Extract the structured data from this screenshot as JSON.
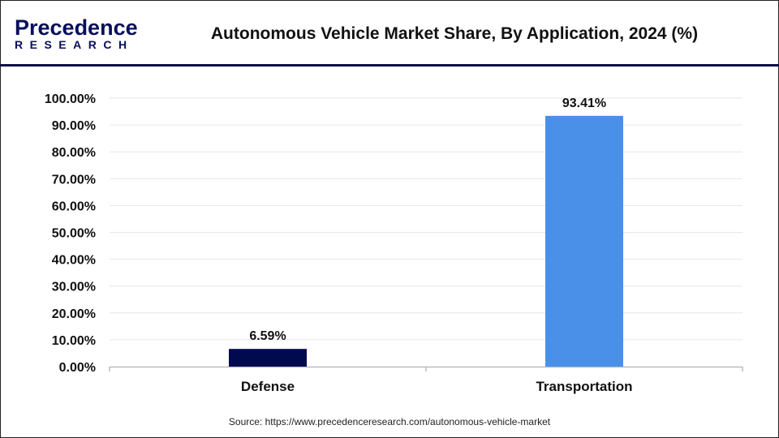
{
  "logo": {
    "line1": "Precedence",
    "line2": "RESEARCH"
  },
  "chart_data": {
    "type": "bar",
    "title": "Autonomous Vehicle Market Share, By Application, 2024 (%)",
    "categories": [
      "Defense",
      "Transportation"
    ],
    "values": [
      6.59,
      93.41
    ],
    "data_labels": [
      "6.59%",
      "93.41%"
    ],
    "colors": [
      "#020a4f",
      "#4a90e8"
    ],
    "ylim": [
      0,
      100
    ],
    "yticks": [
      "0.00%",
      "10.00%",
      "20.00%",
      "30.00%",
      "40.00%",
      "50.00%",
      "60.00%",
      "70.00%",
      "80.00%",
      "90.00%",
      "100.00%"
    ],
    "grid": true,
    "xlabel": "",
    "ylabel": ""
  },
  "source": "Source: https://www.precedenceresearch.com/autonomous-vehicle-market"
}
